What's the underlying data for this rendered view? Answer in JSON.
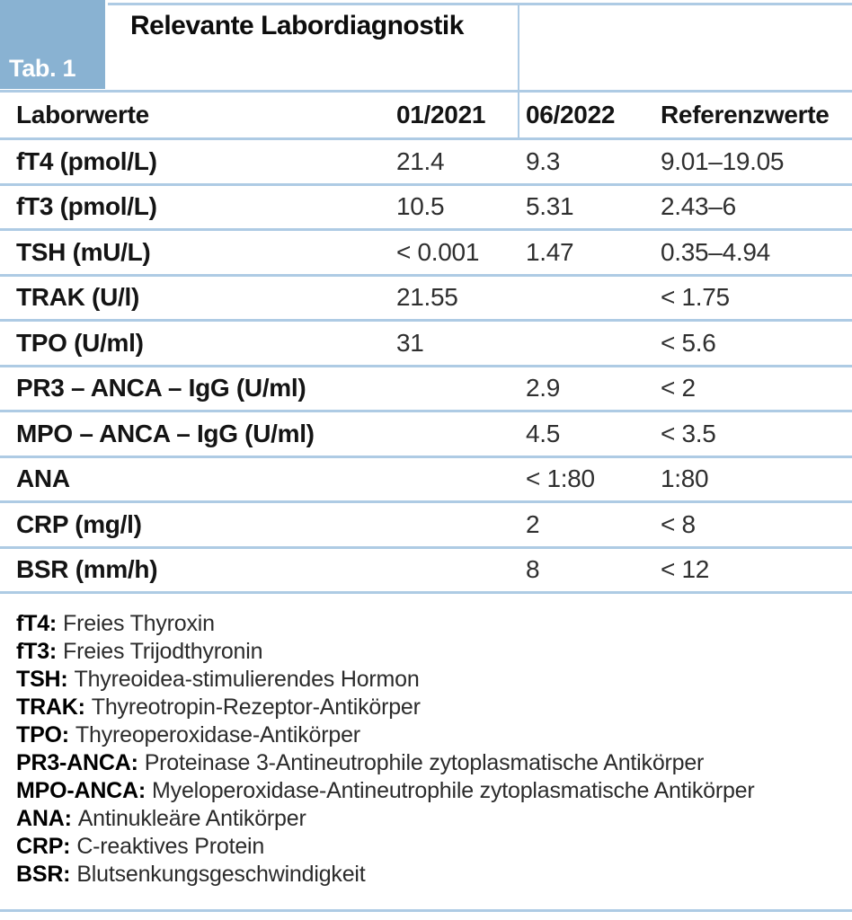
{
  "header": {
    "tag": "Tab. 1",
    "title": "Relevante Labordiagnostik"
  },
  "colors": {
    "tag_box_blue": "#89b2d2",
    "divider_blue": "#aecbe4"
  },
  "table": {
    "columns": [
      "Laborwerte",
      "01/2021",
      "06/2022",
      "Referenzwerte"
    ],
    "rows": [
      {
        "label": "fT4 (pmol/L)",
        "v2021": "21.4",
        "v2022": "9.3",
        "ref": "9.01–19.05"
      },
      {
        "label": "fT3 (pmol/L)",
        "v2021": "10.5",
        "v2022": "5.31",
        "ref": "2.43–6"
      },
      {
        "label": "TSH (mU/L)",
        "v2021": "< 0.001",
        "v2022": "1.47",
        "ref": "0.35–4.94"
      },
      {
        "label": "TRAK (U/l)",
        "v2021": "21.55",
        "v2022": "",
        "ref": "< 1.75"
      },
      {
        "label": "TPO (U/ml)",
        "v2021": "31",
        "v2022": "",
        "ref": "< 5.6"
      },
      {
        "label": "PR3 – ANCA – IgG (U/ml)",
        "v2021": "",
        "v2022": "2.9",
        "ref": "< 2"
      },
      {
        "label": "MPO – ANCA – IgG (U/ml)",
        "v2021": "",
        "v2022": "4.5",
        "ref": "< 3.5"
      },
      {
        "label": "ANA",
        "v2021": "",
        "v2022": "< 1:80",
        "ref": "1:80"
      },
      {
        "label": "CRP (mg/l)",
        "v2021": "",
        "v2022": "2",
        "ref": "< 8"
      },
      {
        "label": "BSR (mm/h)",
        "v2021": "",
        "v2022": "8",
        "ref": "< 12"
      }
    ]
  },
  "legend": [
    {
      "abbr": "fT4:",
      "desc": "Freies Thyroxin"
    },
    {
      "abbr": "fT3:",
      "desc": "Freies Trijodthyronin"
    },
    {
      "abbr": "TSH:",
      "desc": "Thyreoidea-stimulierendes Hormon"
    },
    {
      "abbr": "TRAK:",
      "desc": "Thyreotropin-Rezeptor-Antikörper"
    },
    {
      "abbr": "TPO:",
      "desc": "Thyreoperoxidase-Antikörper"
    },
    {
      "abbr": "PR3-ANCA:",
      "desc": "Proteinase 3-Antineutrophile zytoplasmatische Antikörper"
    },
    {
      "abbr": "MPO-ANCA:",
      "desc": "Myeloperoxidase-Antineutrophile zytoplasmatische Antikörper"
    },
    {
      "abbr": "ANA:",
      "desc": "Antinukleäre Antikörper"
    },
    {
      "abbr": "CRP:",
      "desc": "C-reaktives Protein"
    },
    {
      "abbr": "BSR:",
      "desc": "Blutsenkungsgeschwindigkeit"
    }
  ]
}
